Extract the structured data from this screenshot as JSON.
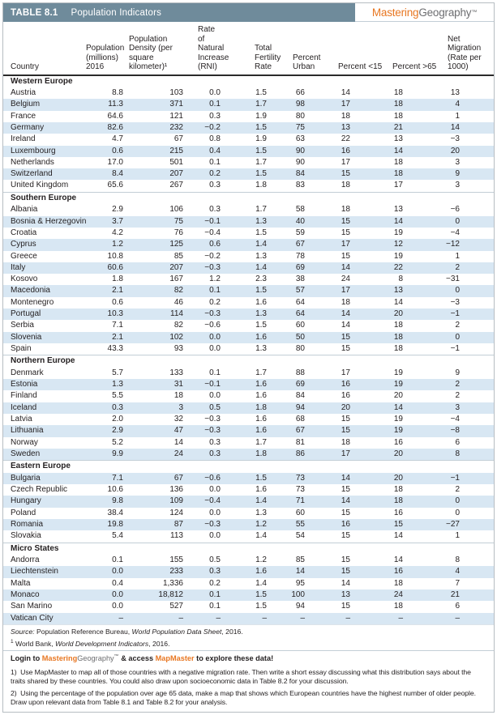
{
  "colors": {
    "header_bar": "#6f8b9b",
    "row_shade": "#d8e7f3",
    "brand_orange": "#e87722",
    "brand_gray": "#6d6e71",
    "rule_dark": "#2a2a2a"
  },
  "header": {
    "table_label": "TABLE 8.1",
    "title": "Population Indicators",
    "brand_orange": "Mastering",
    "brand_gray": "Geography",
    "brand_tm": "™"
  },
  "table": {
    "columns": [
      {
        "id": "country",
        "label": "Country"
      },
      {
        "id": "population",
        "label": "Population\n(millions)\n2016"
      },
      {
        "id": "density",
        "label": "Population\nDensity (per\nsquare kilometer)¹"
      },
      {
        "id": "rni",
        "label": "Rate of\nNatural\nIncrease (RNI)"
      },
      {
        "id": "tfr",
        "label": "Total\nFertility\nRate"
      },
      {
        "id": "urban",
        "label": "Percent\nUrban"
      },
      {
        "id": "under15",
        "label": "Percent <15"
      },
      {
        "id": "over65",
        "label": "Percent >65"
      },
      {
        "id": "netmig",
        "label": "Net Migration\n(Rate per\n1000)"
      }
    ],
    "sections": [
      {
        "name": "Western Europe",
        "alt_offset": 0,
        "rows": [
          [
            "Austria",
            "8.8",
            "103",
            "0.0",
            "1.5",
            "66",
            "14",
            "18",
            "13"
          ],
          [
            "Belgium",
            "11.3",
            "371",
            "0.1",
            "1.7",
            "98",
            "17",
            "18",
            "4"
          ],
          [
            "France",
            "64.6",
            "121",
            "0.3",
            "1.9",
            "80",
            "18",
            "18",
            "1"
          ],
          [
            "Germany",
            "82.6",
            "232",
            "−0.2",
            "1.5",
            "75",
            "13",
            "21",
            "14"
          ],
          [
            "Ireland",
            "4.7",
            "67",
            "0.8",
            "1.9",
            "63",
            "22",
            "13",
            "−3"
          ],
          [
            "Luxembourg",
            "0.6",
            "215",
            "0.4",
            "1.5",
            "90",
            "16",
            "14",
            "20"
          ],
          [
            "Netherlands",
            "17.0",
            "501",
            "0.1",
            "1.7",
            "90",
            "17",
            "18",
            "3"
          ],
          [
            "Switzerland",
            "8.4",
            "207",
            "0.2",
            "1.5",
            "84",
            "15",
            "18",
            "9"
          ],
          [
            "United Kingdom",
            "65.6",
            "267",
            "0.3",
            "1.8",
            "83",
            "18",
            "17",
            "3"
          ]
        ]
      },
      {
        "name": "Southern Europe",
        "alt_offset": 0,
        "rows": [
          [
            "Albania",
            "2.9",
            "106",
            "0.3",
            "1.7",
            "58",
            "18",
            "13",
            "−6"
          ],
          [
            "Bosnia & Herzegovina",
            "3.7",
            "75",
            "−0.1",
            "1.3",
            "40",
            "15",
            "14",
            "0"
          ],
          [
            "Croatia",
            "4.2",
            "76",
            "−0.4",
            "1.5",
            "59",
            "15",
            "19",
            "−4"
          ],
          [
            "Cyprus",
            "1.2",
            "125",
            "0.6",
            "1.4",
            "67",
            "17",
            "12",
            "−12"
          ],
          [
            "Greece",
            "10.8",
            "85",
            "−0.2",
            "1.3",
            "78",
            "15",
            "19",
            "1"
          ],
          [
            "Italy",
            "60.6",
            "207",
            "−0.3",
            "1.4",
            "69",
            "14",
            "22",
            "2"
          ],
          [
            "Kosovo",
            "1.8",
            "167",
            "1.2",
            "2.3",
            "38",
            "24",
            "8",
            "−31"
          ],
          [
            "Macedonia",
            "2.1",
            "82",
            "0.1",
            "1.5",
            "57",
            "17",
            "13",
            "0"
          ],
          [
            "Montenegro",
            "0.6",
            "46",
            "0.2",
            "1.6",
            "64",
            "18",
            "14",
            "−3"
          ],
          [
            "Portugal",
            "10.3",
            "114",
            "−0.3",
            "1.3",
            "64",
            "14",
            "20",
            "−1"
          ],
          [
            "Serbia",
            "7.1",
            "82",
            "−0.6",
            "1.5",
            "60",
            "14",
            "18",
            "2"
          ],
          [
            "Slovenia",
            "2.1",
            "102",
            "0.0",
            "1.6",
            "50",
            "15",
            "18",
            "0"
          ],
          [
            "Spain",
            "43.3",
            "93",
            "0.0",
            "1.3",
            "80",
            "15",
            "18",
            "−1"
          ]
        ]
      },
      {
        "name": "Northern Europe",
        "alt_offset": 0,
        "rows": [
          [
            "Denmark",
            "5.7",
            "133",
            "0.1",
            "1.7",
            "88",
            "17",
            "19",
            "9"
          ],
          [
            "Estonia",
            "1.3",
            "31",
            "−0.1",
            "1.6",
            "69",
            "16",
            "19",
            "2"
          ],
          [
            "Finland",
            "5.5",
            "18",
            "0.0",
            "1.6",
            "84",
            "16",
            "20",
            "2"
          ],
          [
            "Iceland",
            "0.3",
            "3",
            "0.5",
            "1.8",
            "94",
            "20",
            "14",
            "3"
          ],
          [
            "Latvia",
            "2.0",
            "32",
            "−0.3",
            "1.6",
            "68",
            "15",
            "19",
            "−4"
          ],
          [
            "Lithuania",
            "2.9",
            "47",
            "−0.3",
            "1.6",
            "67",
            "15",
            "19",
            "−8"
          ],
          [
            "Norway",
            "5.2",
            "14",
            "0.3",
            "1.7",
            "81",
            "18",
            "16",
            "6"
          ],
          [
            "Sweden",
            "9.9",
            "24",
            "0.3",
            "1.8",
            "86",
            "17",
            "20",
            "8"
          ]
        ]
      },
      {
        "name": "Eastern Europe",
        "alt_offset": 1,
        "rows": [
          [
            "Bulgaria",
            "7.1",
            "67",
            "−0.6",
            "1.5",
            "73",
            "14",
            "20",
            "−1"
          ],
          [
            "Czech Republic",
            "10.6",
            "136",
            "0.0",
            "1.6",
            "73",
            "15",
            "18",
            "2"
          ],
          [
            "Hungary",
            "9.8",
            "109",
            "−0.4",
            "1.4",
            "71",
            "14",
            "18",
            "0"
          ],
          [
            "Poland",
            "38.4",
            "124",
            "0.0",
            "1.3",
            "60",
            "15",
            "16",
            "0"
          ],
          [
            "Romania",
            "19.8",
            "87",
            "−0.3",
            "1.2",
            "55",
            "16",
            "15",
            "−27"
          ],
          [
            "Slovakia",
            "5.4",
            "113",
            "0.0",
            "1.4",
            "54",
            "15",
            "14",
            "1"
          ]
        ]
      },
      {
        "name": "Micro States",
        "alt_offset": 0,
        "rows": [
          [
            "Andorra",
            "0.1",
            "155",
            "0.5",
            "1.2",
            "85",
            "15",
            "14",
            "8"
          ],
          [
            "Liechtenstein",
            "0.0",
            "233",
            "0.3",
            "1.6",
            "14",
            "15",
            "16",
            "4"
          ],
          [
            "Malta",
            "0.4",
            "1,336",
            "0.2",
            "1.4",
            "95",
            "14",
            "18",
            "7"
          ],
          [
            "Monaco",
            "0.0",
            "18,812",
            "0.1",
            "1.5",
            "100",
            "13",
            "24",
            "21"
          ],
          [
            "San Marino",
            "0.0",
            "527",
            "0.1",
            "1.5",
            "94",
            "15",
            "18",
            "6"
          ],
          [
            "Vatican City",
            "–",
            "–",
            "–",
            "–",
            "–",
            "–",
            "–",
            "–"
          ]
        ]
      }
    ]
  },
  "source_parts": [
    {
      "t": "Source: ",
      "i": true
    },
    {
      "t": "Population Reference Bureau, "
    },
    {
      "t": "World Population Data Sheet",
      "i": true
    },
    {
      "t": ", 2016."
    }
  ],
  "footnote_parts": [
    {
      "t": "1",
      "sup": true
    },
    {
      "t": " World Bank, "
    },
    {
      "t": "World Development Indicators",
      "i": true
    },
    {
      "t": ", 2016."
    }
  ],
  "login_parts": [
    {
      "t": "Login to "
    },
    {
      "t": "Mastering",
      "cls": "orange"
    },
    {
      "t": "Geography",
      "cls": "gray"
    },
    {
      "t": "™",
      "sup": true
    },
    {
      "t": " & access "
    },
    {
      "t": "MapMaster",
      "cls": "orange"
    },
    {
      "t": " to explore these data!"
    }
  ],
  "questions": [
    {
      "num": "1)",
      "text": "Use MapMaster to map all of those countries with a negative migration rate. Then write a short essay discussing what this distribution says about the traits shared by these countries. You could also draw upon socioeconomic data in Table 8.2 for your discussion."
    },
    {
      "num": "2)",
      "text": "Using the percentage of the population over age 65 data, make a map that shows which European countries have the highest number of older people. Draw upon relevant data from Table 8.1 and Table 8.2 for your analysis."
    }
  ]
}
